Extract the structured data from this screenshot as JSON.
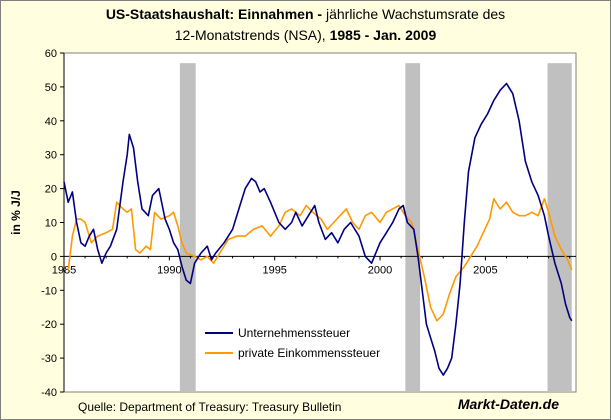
{
  "title": {
    "line1_bold": "US-Staatshaushalt: Einnahmen -",
    "line1_normal": " jährliche Wachstumsrate des",
    "line2_normal": "12-Monatstrends (NSA), ",
    "line2_bold": "1985 - Jan. 2009"
  },
  "source": "Quelle: Department of Treasury: Treasury Bulletin",
  "brand": "Markt-Daten.de",
  "colors": {
    "background": "#FFFFE0",
    "plot_area": "#FFFFFF",
    "recession": "#C0C0C0",
    "series_corporate": "#000080",
    "series_income": "#FF9900"
  },
  "chart_data": {
    "type": "line",
    "ylabel": "in % J/J",
    "xlim": [
      1985,
      2009.3
    ],
    "ylim": [
      -40,
      60
    ],
    "x_ticks": [
      1985,
      1990,
      1995,
      2000,
      2005
    ],
    "x_tick_labels": [
      "1985",
      "1990",
      "1995",
      "2000",
      "2005"
    ],
    "y_ticks": [
      -40,
      -30,
      -20,
      -10,
      0,
      10,
      20,
      30,
      40,
      50,
      60
    ],
    "y_tick_labels": [
      "-40",
      "-30",
      "-20",
      "-10",
      "0",
      "10",
      "20",
      "30",
      "40",
      "50",
      "60"
    ],
    "grid": false,
    "legend_position": "bottom-left",
    "recessions": [
      [
        1990.5,
        1991.25
      ],
      [
        2001.2,
        2001.9
      ],
      [
        2007.95,
        2009.1
      ]
    ],
    "series": [
      {
        "name": "Unternehmenssteuer",
        "color": "#000080",
        "points": [
          [
            1985.0,
            22
          ],
          [
            1985.2,
            16
          ],
          [
            1985.4,
            19
          ],
          [
            1985.6,
            10
          ],
          [
            1985.8,
            4
          ],
          [
            1986.0,
            3
          ],
          [
            1986.2,
            6
          ],
          [
            1986.4,
            8
          ],
          [
            1986.6,
            2
          ],
          [
            1986.8,
            -2
          ],
          [
            1987.0,
            1
          ],
          [
            1987.2,
            3
          ],
          [
            1987.5,
            8
          ],
          [
            1987.8,
            22
          ],
          [
            1988.0,
            30
          ],
          [
            1988.1,
            36
          ],
          [
            1988.3,
            32
          ],
          [
            1988.5,
            22
          ],
          [
            1988.7,
            14
          ],
          [
            1989.0,
            12
          ],
          [
            1989.2,
            18
          ],
          [
            1989.5,
            20
          ],
          [
            1989.8,
            11
          ],
          [
            1990.0,
            8
          ],
          [
            1990.2,
            4
          ],
          [
            1990.4,
            2
          ],
          [
            1990.6,
            -3
          ],
          [
            1990.8,
            -7
          ],
          [
            1991.0,
            -8
          ],
          [
            1991.2,
            -2
          ],
          [
            1991.5,
            1
          ],
          [
            1991.8,
            3
          ],
          [
            1992.0,
            -1
          ],
          [
            1992.2,
            1
          ],
          [
            1992.6,
            4
          ],
          [
            1993.0,
            8
          ],
          [
            1993.3,
            14
          ],
          [
            1993.6,
            20
          ],
          [
            1993.9,
            23
          ],
          [
            1994.1,
            22
          ],
          [
            1994.3,
            19
          ],
          [
            1994.5,
            20
          ],
          [
            1994.8,
            16
          ],
          [
            1995.2,
            10
          ],
          [
            1995.5,
            8
          ],
          [
            1995.8,
            10
          ],
          [
            1996.0,
            13
          ],
          [
            1996.3,
            9
          ],
          [
            1996.6,
            12
          ],
          [
            1996.9,
            15
          ],
          [
            1997.1,
            10
          ],
          [
            1997.4,
            5
          ],
          [
            1997.7,
            7
          ],
          [
            1998.0,
            4
          ],
          [
            1998.3,
            8
          ],
          [
            1998.6,
            10
          ],
          [
            1999.0,
            6
          ],
          [
            1999.3,
            0
          ],
          [
            1999.6,
            -2
          ],
          [
            2000.0,
            4
          ],
          [
            2000.3,
            7
          ],
          [
            2000.6,
            10
          ],
          [
            2000.9,
            14
          ],
          [
            2001.1,
            15
          ],
          [
            2001.3,
            10
          ],
          [
            2001.6,
            8
          ],
          [
            2001.8,
            0
          ],
          [
            2002.0,
            -10
          ],
          [
            2002.2,
            -20
          ],
          [
            2002.4,
            -24
          ],
          [
            2002.6,
            -28
          ],
          [
            2002.8,
            -33
          ],
          [
            2003.0,
            -35
          ],
          [
            2003.2,
            -33
          ],
          [
            2003.4,
            -30
          ],
          [
            2003.6,
            -20
          ],
          [
            2003.8,
            -8
          ],
          [
            2004.0,
            10
          ],
          [
            2004.2,
            25
          ],
          [
            2004.5,
            35
          ],
          [
            2004.8,
            39
          ],
          [
            2005.1,
            42
          ],
          [
            2005.4,
            46
          ],
          [
            2005.7,
            49
          ],
          [
            2006.0,
            51
          ],
          [
            2006.3,
            48
          ],
          [
            2006.6,
            40
          ],
          [
            2006.9,
            28
          ],
          [
            2007.2,
            22
          ],
          [
            2007.5,
            18
          ],
          [
            2007.8,
            12
          ],
          [
            2008.0,
            6
          ],
          [
            2008.3,
            -2
          ],
          [
            2008.6,
            -8
          ],
          [
            2008.8,
            -14
          ],
          [
            2009.0,
            -18
          ],
          [
            2009.1,
            -19
          ]
        ]
      },
      {
        "name": "private Einkommenssteuer",
        "color": "#FF9900",
        "points": [
          [
            1985.2,
            -4
          ],
          [
            1985.4,
            6
          ],
          [
            1985.6,
            11
          ],
          [
            1985.8,
            11
          ],
          [
            1986.0,
            10
          ],
          [
            1986.3,
            4
          ],
          [
            1986.6,
            6
          ],
          [
            1987.0,
            7
          ],
          [
            1987.3,
            8
          ],
          [
            1987.5,
            16
          ],
          [
            1987.8,
            14
          ],
          [
            1988.0,
            13
          ],
          [
            1988.2,
            14
          ],
          [
            1988.4,
            2
          ],
          [
            1988.6,
            1
          ],
          [
            1988.9,
            3
          ],
          [
            1989.1,
            2
          ],
          [
            1989.3,
            13
          ],
          [
            1989.6,
            11
          ],
          [
            1990.0,
            12
          ],
          [
            1990.2,
            13
          ],
          [
            1990.4,
            9
          ],
          [
            1990.6,
            4
          ],
          [
            1990.8,
            1
          ],
          [
            1991.2,
            0
          ],
          [
            1991.5,
            -1
          ],
          [
            1991.8,
            0
          ],
          [
            1992.1,
            -2
          ],
          [
            1992.4,
            1
          ],
          [
            1992.8,
            5
          ],
          [
            1993.2,
            6
          ],
          [
            1993.6,
            6
          ],
          [
            1994.0,
            8
          ],
          [
            1994.4,
            9
          ],
          [
            1994.8,
            6
          ],
          [
            1995.2,
            9
          ],
          [
            1995.5,
            13
          ],
          [
            1995.8,
            14
          ],
          [
            1996.2,
            12
          ],
          [
            1996.5,
            15
          ],
          [
            1996.8,
            13
          ],
          [
            1997.2,
            11
          ],
          [
            1997.5,
            8
          ],
          [
            1997.8,
            10
          ],
          [
            1998.1,
            12
          ],
          [
            1998.4,
            14
          ],
          [
            1998.7,
            10
          ],
          [
            1999.0,
            8
          ],
          [
            1999.3,
            12
          ],
          [
            1999.6,
            13
          ],
          [
            2000.0,
            10
          ],
          [
            2000.3,
            13
          ],
          [
            2000.6,
            14
          ],
          [
            2000.9,
            15
          ],
          [
            2001.2,
            12
          ],
          [
            2001.5,
            10
          ],
          [
            2001.8,
            2
          ],
          [
            2002.1,
            -6
          ],
          [
            2002.4,
            -15
          ],
          [
            2002.7,
            -19
          ],
          [
            2003.0,
            -17
          ],
          [
            2003.3,
            -11
          ],
          [
            2003.6,
            -6
          ],
          [
            2004.0,
            -3
          ],
          [
            2004.3,
            0
          ],
          [
            2004.6,
            3
          ],
          [
            2004.9,
            7
          ],
          [
            2005.2,
            11
          ],
          [
            2005.4,
            17
          ],
          [
            2005.7,
            14
          ],
          [
            2006.0,
            16
          ],
          [
            2006.3,
            13
          ],
          [
            2006.6,
            12
          ],
          [
            2006.9,
            12
          ],
          [
            2007.2,
            13
          ],
          [
            2007.5,
            12
          ],
          [
            2007.8,
            17
          ],
          [
            2008.0,
            13
          ],
          [
            2008.3,
            6
          ],
          [
            2008.6,
            2
          ],
          [
            2008.9,
            -1
          ],
          [
            2009.1,
            -4
          ]
        ]
      }
    ]
  }
}
